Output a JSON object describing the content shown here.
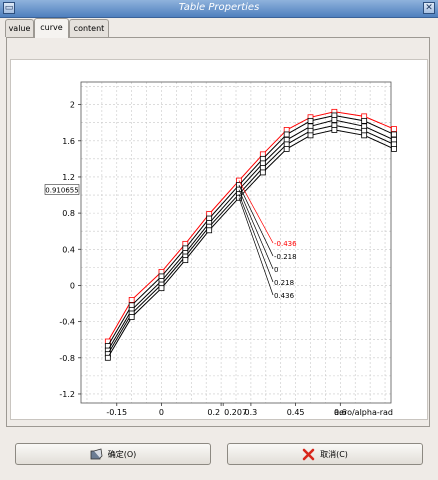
{
  "window": {
    "title": "Table Properties"
  },
  "tabs": [
    {
      "label": "value",
      "active": false
    },
    {
      "label": "curve",
      "active": true
    },
    {
      "label": "content",
      "active": false
    }
  ],
  "chart_data": {
    "type": "line",
    "xlabel": "aero/alpha-rad",
    "ylabel": "",
    "x_ticks": [
      {
        "value": -0.15,
        "label": "-0.15"
      },
      {
        "value": 0,
        "label": "0"
      },
      {
        "value": 0.2,
        "label": "0.2"
      },
      {
        "value": 0.207,
        "label": "0.207"
      },
      {
        "value": 0.3,
        "label": "0.3"
      },
      {
        "value": 0.45,
        "label": "0.45"
      },
      {
        "value": 0.6,
        "label": "0.6"
      }
    ],
    "y_ticks": [
      -1.2,
      -0.8,
      -0.4,
      0,
      0.4,
      0.8,
      1.2,
      1.6,
      2
    ],
    "y_tick_labels": [
      "-1.2",
      "-0.8",
      "-0.4",
      "0",
      "0.4",
      "0.8",
      "1.2",
      "1.6",
      "2"
    ],
    "xlim": [
      -0.27,
      0.77
    ],
    "ylim": [
      -1.3,
      2.25
    ],
    "marker_label": "0.910655",
    "grid": true,
    "x": [
      -0.18,
      -0.1,
      0.0,
      0.08,
      0.16,
      0.26,
      0.34,
      0.42,
      0.5,
      0.58,
      0.68,
      0.78
    ],
    "series": [
      {
        "name": "-0.436",
        "color": "#ff0000",
        "values": [
          -0.62,
          -0.16,
          0.15,
          0.46,
          0.79,
          1.16,
          1.45,
          1.72,
          1.86,
          1.92,
          1.87,
          1.73
        ]
      },
      {
        "name": "-0.218",
        "color": "#000000",
        "values": [
          -0.67,
          -0.22,
          0.1,
          0.41,
          0.74,
          1.11,
          1.4,
          1.67,
          1.82,
          1.88,
          1.82,
          1.67
        ]
      },
      {
        "name": "0",
        "color": "#000000",
        "values": [
          -0.72,
          -0.27,
          0.05,
          0.36,
          0.69,
          1.06,
          1.35,
          1.61,
          1.76,
          1.83,
          1.76,
          1.61
        ]
      },
      {
        "name": "0.218",
        "color": "#000000",
        "values": [
          -0.76,
          -0.31,
          0.01,
          0.32,
          0.65,
          1.01,
          1.3,
          1.56,
          1.71,
          1.77,
          1.71,
          1.56
        ]
      },
      {
        "name": "0.436",
        "color": "#000000",
        "values": [
          -0.8,
          -0.35,
          -0.03,
          0.28,
          0.61,
          0.97,
          1.25,
          1.51,
          1.66,
          1.72,
          1.66,
          1.51
        ]
      }
    ]
  },
  "buttons": {
    "ok": {
      "label": "确定(O)",
      "icon": "ok-icon"
    },
    "cancel": {
      "label": "取消(C)",
      "icon": "cancel-icon"
    }
  }
}
